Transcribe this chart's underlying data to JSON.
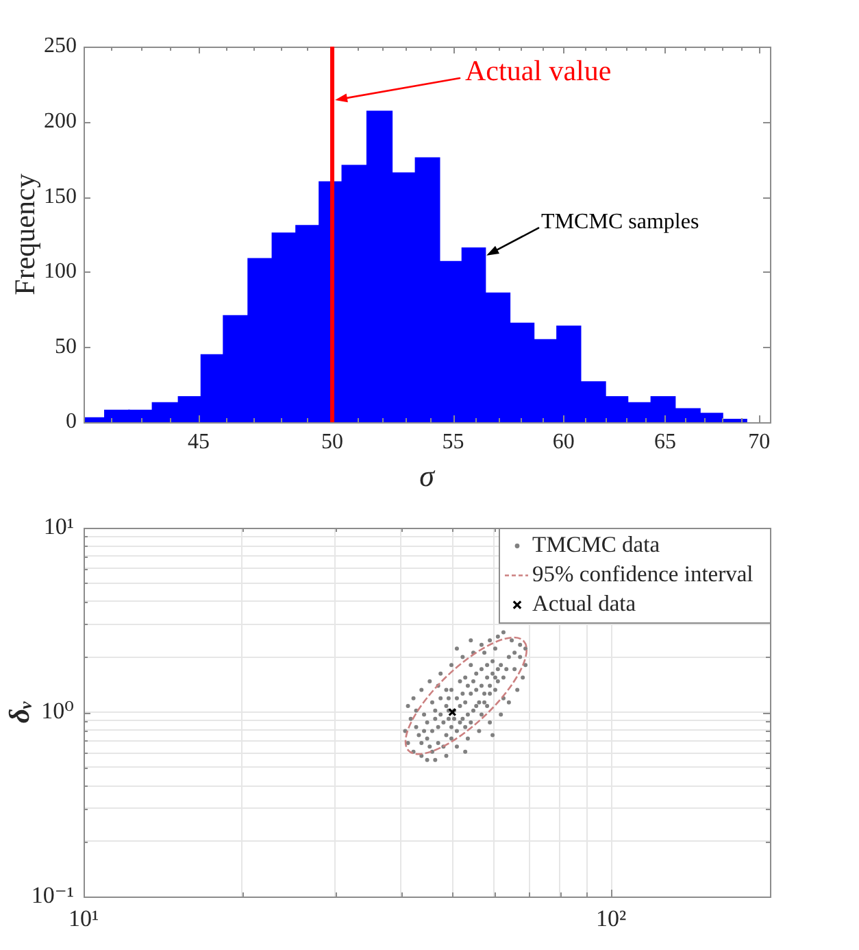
{
  "chart_data": [
    {
      "type": "histogram",
      "xlabel": "σ",
      "ylabel": "Frequency",
      "log": "x",
      "color": "#0000ff",
      "bins": [
        41.1,
        41.8,
        42.6,
        43.4,
        44.3,
        45.1,
        45.9,
        46.8,
        47.7,
        48.6,
        49.5,
        50.4,
        51.4,
        52.4,
        53.4,
        54.4,
        55.4,
        56.4,
        57.5,
        58.6,
        59.7,
        60.8,
        62.0,
        63.1,
        64.3,
        65.5,
        66.8,
        68.0,
        69.3
      ],
      "values": [
        3,
        8,
        8,
        13,
        17,
        45,
        71,
        109,
        126,
        131,
        160,
        171,
        207,
        166,
        176,
        107,
        116,
        86,
        66,
        55,
        64,
        27,
        17,
        13,
        17,
        9,
        6,
        2
      ],
      "xlim": [
        41.1,
        70.6
      ],
      "xticks": [
        {
          "value": 42,
          "label": null
        },
        {
          "value": 43,
          "label": null
        },
        {
          "value": 44,
          "label": null
        },
        45,
        {
          "value": 46,
          "label": null
        },
        {
          "value": 47,
          "label": null
        },
        {
          "value": 48,
          "label": null
        },
        {
          "value": 49,
          "label": null
        },
        50,
        {
          "value": 51,
          "label": null
        },
        {
          "value": 52,
          "label": null
        },
        {
          "value": 53,
          "label": null
        },
        {
          "value": 54,
          "label": null
        },
        55,
        {
          "value": 56,
          "label": null
        },
        {
          "value": 57,
          "label": null
        },
        {
          "value": 58,
          "label": null
        },
        {
          "value": 59,
          "label": null
        },
        60,
        {
          "value": 61,
          "label": null
        },
        {
          "value": 62,
          "label": null
        },
        {
          "value": 63,
          "label": null
        },
        {
          "value": 64,
          "label": null
        },
        65,
        {
          "value": 66,
          "label": null
        },
        {
          "value": 67,
          "label": null
        },
        {
          "value": 68,
          "label": null
        },
        {
          "value": 69,
          "label": null
        },
        70
      ],
      "ylim": [
        0,
        250
      ],
      "yticks": [
        0,
        50,
        100,
        150,
        200,
        250
      ],
      "ref_lines": [
        {
          "axis": "x",
          "value": 50,
          "label": "Actual value",
          "color": "#ff0000"
        }
      ],
      "annotations": [
        {
          "text": "TMCMC samples",
          "x": 56.4,
          "y": 111
        }
      ]
    },
    {
      "type": "scatter",
      "ylabel": "δᵥ",
      "log": "xy",
      "grid": true,
      "legend": "top right",
      "xlim": [
        10,
        200
      ],
      "xticks": [
        {
          "value": 10,
          "label": "10¹"
        },
        {
          "value": 20,
          "label": null
        },
        {
          "value": 30,
          "label": null
        },
        {
          "value": 40,
          "label": null
        },
        {
          "value": 50,
          "label": null
        },
        {
          "value": 60,
          "label": null
        },
        {
          "value": 70,
          "label": null
        },
        {
          "value": 80,
          "label": null
        },
        {
          "value": 90,
          "label": null
        },
        {
          "value": 100,
          "label": "10²"
        }
      ],
      "ylim": [
        0.1,
        10
      ],
      "yticks": [
        {
          "value": 0.1,
          "label": "10⁻¹"
        },
        {
          "value": 0.2,
          "label": null
        },
        {
          "value": 0.3,
          "label": null
        },
        {
          "value": 0.4,
          "label": null
        },
        {
          "value": 0.5,
          "label": null
        },
        {
          "value": 0.6,
          "label": null
        },
        {
          "value": 0.7,
          "label": null
        },
        {
          "value": 0.8,
          "label": null
        },
        {
          "value": 0.9,
          "label": null
        },
        {
          "value": 1,
          "label": "10⁰"
        },
        {
          "value": 2,
          "label": null
        },
        {
          "value": 3,
          "label": null
        },
        {
          "value": 4,
          "label": null
        },
        {
          "value": 5,
          "label": null
        },
        {
          "value": 6,
          "label": null
        },
        {
          "value": 7,
          "label": null
        },
        {
          "value": 8,
          "label": null
        },
        {
          "value": 9,
          "label": null
        },
        {
          "value": 10,
          "label": "10¹"
        }
      ],
      "series": [
        {
          "name": "TMCMC data",
          "type": "scatter",
          "marker": "circle",
          "color": "#808080",
          "x": [
            51.7,
            50.4,
            52.9,
            49.2,
            54.2,
            48.1,
            55.5,
            47.0,
            56.8,
            45.8,
            58.2,
            44.8,
            59.6,
            49.8,
            52.3,
            54.8,
            51.0,
            53.5,
            48.7,
            56.2,
            47.5,
            46.4,
            57.5,
            58.9,
            60.3,
            61.0,
            44.2,
            45.3,
            43.7,
            48.7,
            51.0,
            54.2,
            56.8,
            52.9,
            49.8,
            47.5,
            55.5,
            58.2,
            59.6,
            61.8,
            62.5,
            60.3,
            54.8,
            52.3,
            49.2,
            46.4,
            44.8,
            43.2,
            47.0,
            49.8,
            51.7,
            53.5,
            55.5,
            57.5,
            58.9,
            56.8,
            54.2,
            51.7,
            48.7,
            45.8,
            44.2,
            42.7,
            50.4,
            49.2,
            52.9,
            58.2,
            61.0,
            63.3,
            48.1,
            45.8,
            62.5,
            61.0,
            64.8,
            67.2,
            68.8,
            65.6,
            58.9,
            56.8,
            54.8,
            52.3,
            49.8,
            47.5,
            45.3,
            43.7,
            42.2,
            41.2,
            41.7,
            40.7,
            41.2,
            42.2,
            43.7,
            46.4,
            48.7,
            51.0,
            53.5,
            56.2,
            58.9,
            61.8,
            64.0,
            66.4,
            68.0,
            68.8,
            65.6,
            64.0,
            60.3,
            54.2,
            51.0,
            47.0,
            42.7,
            52.9,
            59.6,
            62.5,
            67.2,
            57.5,
            44.8
          ],
          "values": [
            1.08,
            1.02,
            1.13,
            0.92,
            1.26,
            0.88,
            1.32,
            0.83,
            1.39,
            0.79,
            1.54,
            0.72,
            1.62,
            0.83,
            0.92,
            1.02,
            1.19,
            1.39,
            1.08,
            1.13,
            0.97,
            0.92,
            1.26,
            1.39,
            1.54,
            1.71,
            0.79,
            0.65,
            0.68,
            0.75,
            0.79,
            0.88,
            0.97,
            1.54,
            1.32,
            1.19,
            1.62,
            1.8,
            1.89,
            1.8,
            1.54,
            1.32,
            1.47,
            1.26,
            1.19,
            1.02,
            0.88,
            0.75,
            0.68,
            0.72,
            0.88,
            0.97,
            1.08,
            1.13,
            1.26,
            1.71,
            1.8,
            1.47,
            1.32,
            1.13,
            0.97,
            0.83,
            0.92,
            1.02,
            0.83,
            1.08,
            1.47,
            1.71,
            0.65,
            0.61,
            2.71,
            2.57,
            2.45,
            2.32,
            2.21,
            2.1,
            2.45,
            2.32,
            2.1,
            1.99,
            1.8,
            1.62,
            1.47,
            1.32,
            1.19,
            1.08,
            0.92,
            0.79,
            0.68,
            0.61,
            0.58,
            0.55,
            0.58,
            0.65,
            0.72,
            0.79,
            0.88,
            0.97,
            1.13,
            1.32,
            1.54,
            1.8,
            1.71,
            1.99,
            2.21,
            2.45,
            2.21,
            1.39,
            1.02,
            0.61,
            0.75,
            1.19,
            1.99,
            2.1,
            0.55
          ]
        },
        {
          "name": "95% confidence interval",
          "type": "line",
          "marker": "none",
          "line_style": "dashed",
          "color": "#cc8080"
        },
        {
          "name": "Actual data",
          "type": "scatter",
          "marker": "cross",
          "color": "#000000",
          "x": [
            50
          ],
          "values": [
            1
          ]
        }
      ]
    }
  ]
}
